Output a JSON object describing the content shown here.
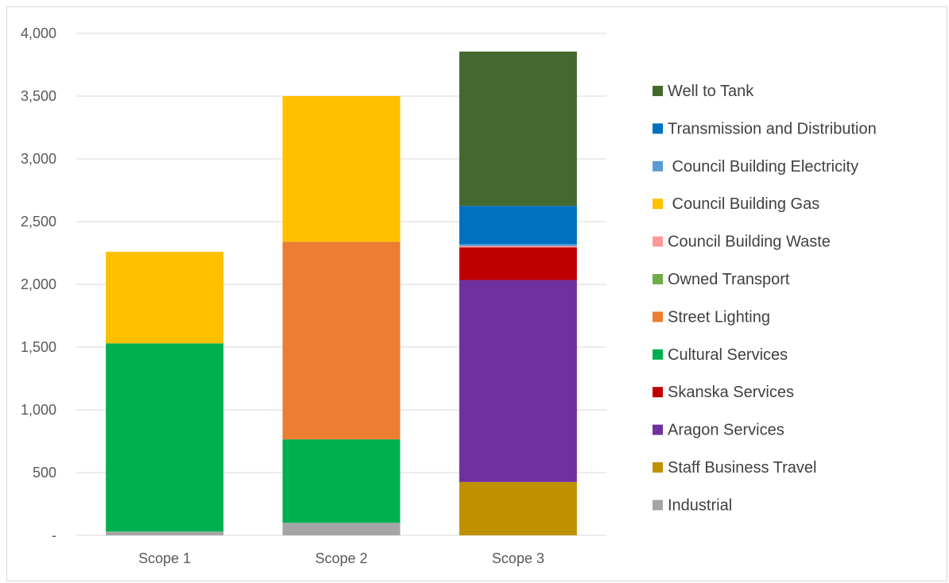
{
  "chart_data": {
    "type": "bar",
    "stacked": true,
    "categories": [
      "Scope 1",
      "Scope 2",
      "Scope 3"
    ],
    "ylim": [
      0,
      4000
    ],
    "yticks": [
      0,
      500,
      1000,
      1500,
      2000,
      2500,
      3000,
      3500,
      4000
    ],
    "ytick_labels": [
      "-",
      "500",
      "1,000",
      "1,500",
      "2,000",
      "2,500",
      "3,000",
      "3,500",
      "4,000"
    ],
    "grid": true,
    "legend_position": "right",
    "series": [
      {
        "name": "Industrial",
        "color": "#A5A5A5",
        "values": [
          30,
          100,
          0
        ]
      },
      {
        "name": "Staff Business Travel",
        "color": "#BF9000",
        "values": [
          0,
          0,
          425
        ]
      },
      {
        "name": "Aragon Services",
        "color": "#7030A0",
        "values": [
          0,
          0,
          1610
        ]
      },
      {
        "name": "Skanska Services",
        "color": "#C00000",
        "values": [
          0,
          0,
          260
        ]
      },
      {
        "name": "Cultural Services",
        "color": "#00B050",
        "values": [
          1500,
          665,
          0
        ]
      },
      {
        "name": "Street Lighting",
        "color": "#ED7D31",
        "values": [
          0,
          1575,
          0
        ]
      },
      {
        "name": "Owned Transport",
        "color": "#70AD47",
        "values": [
          0,
          0,
          0
        ]
      },
      {
        "name": "Council Building Waste",
        "color": "#FF9999",
        "values": [
          0,
          0,
          10
        ]
      },
      {
        "name": " Council Building Gas",
        "color": "#FFC000",
        "values": [
          730,
          1160,
          0
        ]
      },
      {
        "name": " Council Building Electricity",
        "color": "#5B9BD5",
        "values": [
          0,
          0,
          15
        ]
      },
      {
        "name": "Transmission and Distribution",
        "color": "#0070C0",
        "values": [
          0,
          0,
          305
        ]
      },
      {
        "name": "Well to Tank",
        "color": "#44692E",
        "values": [
          0,
          0,
          1230
        ]
      }
    ]
  }
}
